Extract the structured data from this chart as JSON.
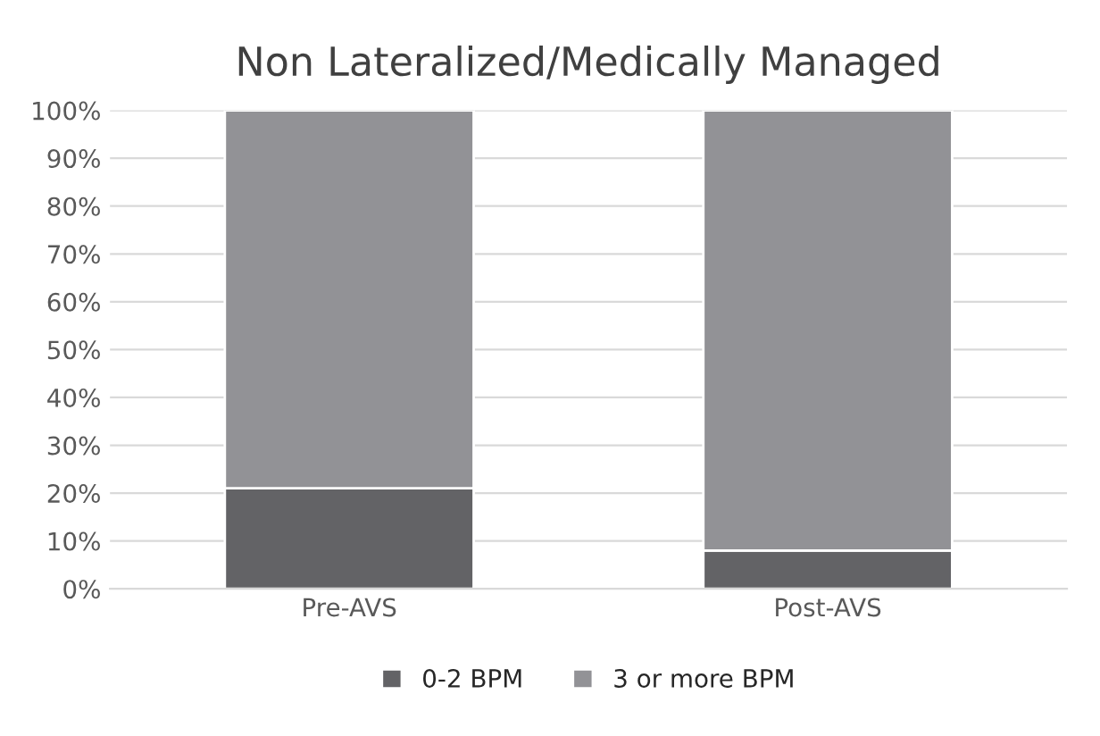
{
  "chart_data": {
    "type": "bar",
    "title": "Non Lateralized/Medically Managed",
    "stacked": true,
    "categories": [
      "Pre-AVS",
      "Post-AVS"
    ],
    "series": [
      {
        "name": "0-2 BPM",
        "color": "#636366",
        "values": [
          21,
          8
        ]
      },
      {
        "name": "3 or more BPM",
        "color": "#929296",
        "values": [
          79,
          92
        ]
      }
    ],
    "ylim": [
      0,
      100
    ],
    "yticks": [
      {
        "value": 0,
        "label": "0%"
      },
      {
        "value": 10,
        "label": "10%"
      },
      {
        "value": 20,
        "label": "20%"
      },
      {
        "value": 30,
        "label": "30%"
      },
      {
        "value": 40,
        "label": "40%"
      },
      {
        "value": 50,
        "label": "50%"
      },
      {
        "value": 60,
        "label": "60%"
      },
      {
        "value": 70,
        "label": "70%"
      },
      {
        "value": 80,
        "label": "80%"
      },
      {
        "value": 90,
        "label": "90%"
      },
      {
        "value": 100,
        "label": "100%"
      }
    ],
    "grid": "y",
    "legend": "bottom"
  }
}
